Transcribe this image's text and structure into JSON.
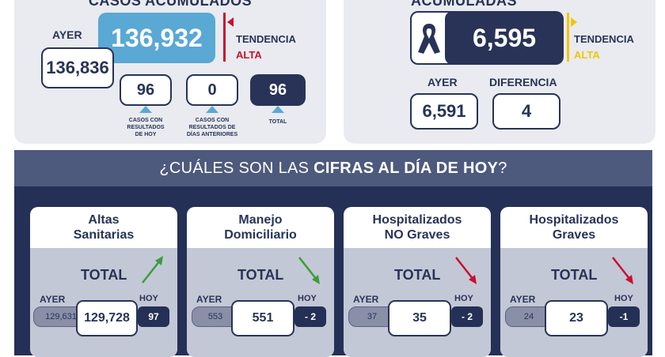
{
  "left_panel": {
    "title": "CASOS ACUMULADOS",
    "ayer_label": "AYER",
    "total_value": "136,932",
    "ayer_value": "136,836",
    "tendencia_label": "TENDENCIA",
    "tendencia_value": "ALTA",
    "accent_color": "#c8102e",
    "box_color": "#5aa8d4",
    "sub_boxes": [
      {
        "value": "96",
        "caption": "CASOS CON RESULTADOS DE HOY"
      },
      {
        "value": "0",
        "caption": "CASOS CON RESULTADOS DE DÍAS ANTERIORES"
      },
      {
        "value": "96",
        "caption": "TOTAL"
      }
    ]
  },
  "right_panel": {
    "title": "ACUMULADAS",
    "icon": "ribbon-icon",
    "total_value": "6,595",
    "tendencia_label": "TENDENCIA",
    "tendencia_value": "ALTA",
    "accent_color": "#f2c500",
    "ayer_label": "AYER",
    "ayer_value": "6,591",
    "diferencia_label": "DIFERENCIA",
    "diferencia_value": "4"
  },
  "bottom_panel": {
    "question_prefix": "¿CUÁLES SON LAS ",
    "question_bold": "CIFRAS AL DÍA DE HOY",
    "question_suffix": "?",
    "cards": [
      {
        "title_line1": "Altas",
        "title_line2": "Sanitarias",
        "total_label": "TOTAL",
        "trend": "up",
        "trend_color": "#3a9d3a",
        "ayer_label": "AYER",
        "ayer_value": "129,631",
        "value": "129,728",
        "hoy_label": "HOY",
        "hoy_value": "97"
      },
      {
        "title_line1": "Manejo",
        "title_line2": "Domiciliario",
        "total_label": "TOTAL",
        "trend": "down",
        "trend_color": "#3a9d3a",
        "ayer_label": "AYER",
        "ayer_value": "553",
        "value": "551",
        "hoy_label": "HOY",
        "hoy_value": "- 2"
      },
      {
        "title_line1": "Hospitalizados",
        "title_line2": "NO Graves",
        "total_label": "TOTAL",
        "trend": "down",
        "trend_color": "#c8102e",
        "ayer_label": "AYER",
        "ayer_value": "37",
        "value": "35",
        "hoy_label": "HOY",
        "hoy_value": "- 2"
      },
      {
        "title_line1": "Hospitalizados",
        "title_line2": "Graves",
        "total_label": "TOTAL",
        "trend": "down",
        "trend_color": "#c8102e",
        "ayer_label": "AYER",
        "ayer_value": "24",
        "value": "23",
        "hoy_label": "HOY",
        "hoy_value": "-1"
      }
    ]
  }
}
